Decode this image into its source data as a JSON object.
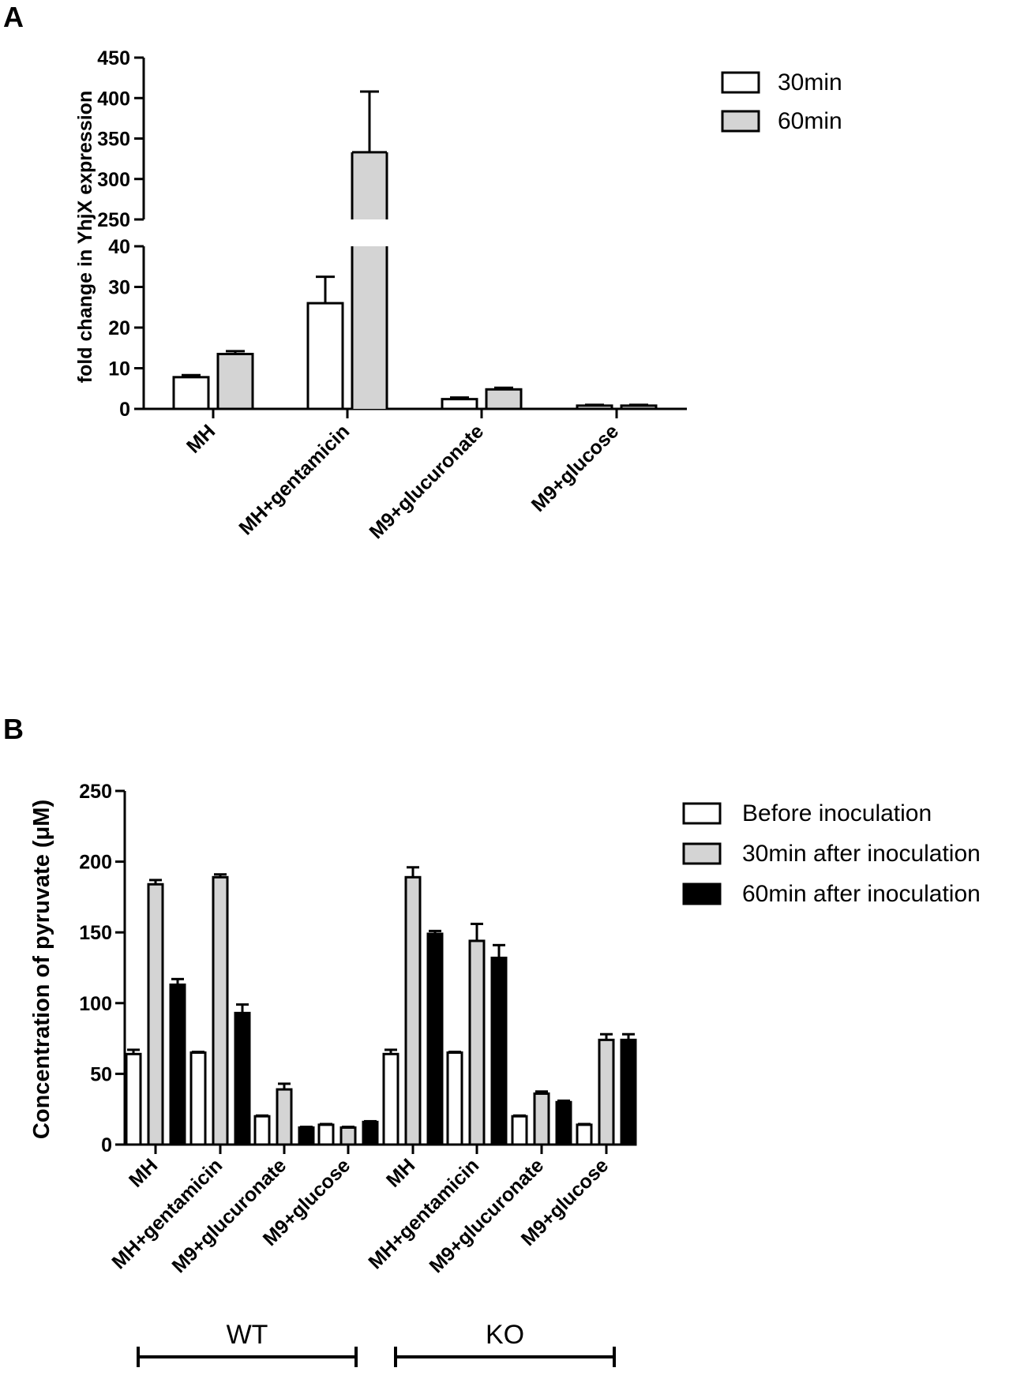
{
  "chart_data": [
    {
      "panel": "A",
      "type": "bar",
      "title": "",
      "ylabel": "fold change in YhjX expression",
      "xlabel": "",
      "axis_break": {
        "lower": [
          0,
          40
        ],
        "upper": [
          250,
          450
        ]
      },
      "lower_ticks": [
        0,
        10,
        20,
        30,
        40
      ],
      "upper_ticks": [
        250,
        300,
        350,
        400,
        450
      ],
      "categories": [
        "MH",
        "MH+gentamicin",
        "M9+glucuronate",
        "M9+glucose"
      ],
      "series": [
        {
          "name": "30min",
          "color": "#ffffff",
          "values": [
            7.8,
            26,
            2.4,
            0.8
          ],
          "errors": [
            0.5,
            6.5,
            0.4,
            0.2
          ]
        },
        {
          "name": "60min",
          "color": "#d4d4d4",
          "values": [
            13.5,
            333,
            4.8,
            0.8
          ],
          "errors": [
            0.7,
            75,
            0.4,
            0.2
          ]
        }
      ],
      "legend": {
        "position": "top-right"
      }
    },
    {
      "panel": "B",
      "type": "bar",
      "title": "",
      "ylabel": "Concentration of pyruvate (μM)",
      "xlabel": "",
      "ylim": [
        0,
        250
      ],
      "ticks": [
        0,
        50,
        100,
        150,
        200,
        250
      ],
      "categories": [
        "MH",
        "MH+gentamicin",
        "M9+glucuronate",
        "M9+glucose",
        "MH",
        "MH+gentamicin",
        "M9+glucuronate",
        "M9+glucose"
      ],
      "groups": [
        {
          "label": "WT",
          "from": 0,
          "to": 3
        },
        {
          "label": "KO",
          "from": 4,
          "to": 7
        }
      ],
      "series": [
        {
          "name": "Before inoculation",
          "color": "#ffffff",
          "values": [
            64,
            65,
            20,
            14,
            64,
            65,
            20,
            14
          ],
          "errors": [
            3,
            0.5,
            0.5,
            0.5,
            3,
            0.5,
            0.5,
            0.5
          ]
        },
        {
          "name": "30min after inoculation",
          "color": "#d4d4d4",
          "values": [
            184,
            189,
            39,
            12,
            189,
            144,
            36,
            74
          ],
          "errors": [
            3,
            2,
            4,
            0.5,
            7,
            12,
            1.5,
            4
          ]
        },
        {
          "name": "60min after inoculation",
          "color": "#000000",
          "values": [
            113,
            93,
            12,
            16,
            149,
            132,
            30,
            74
          ],
          "errors": [
            4,
            6,
            0.5,
            0.5,
            2,
            9,
            1,
            4
          ]
        }
      ],
      "legend": {
        "position": "top-right"
      }
    }
  ]
}
